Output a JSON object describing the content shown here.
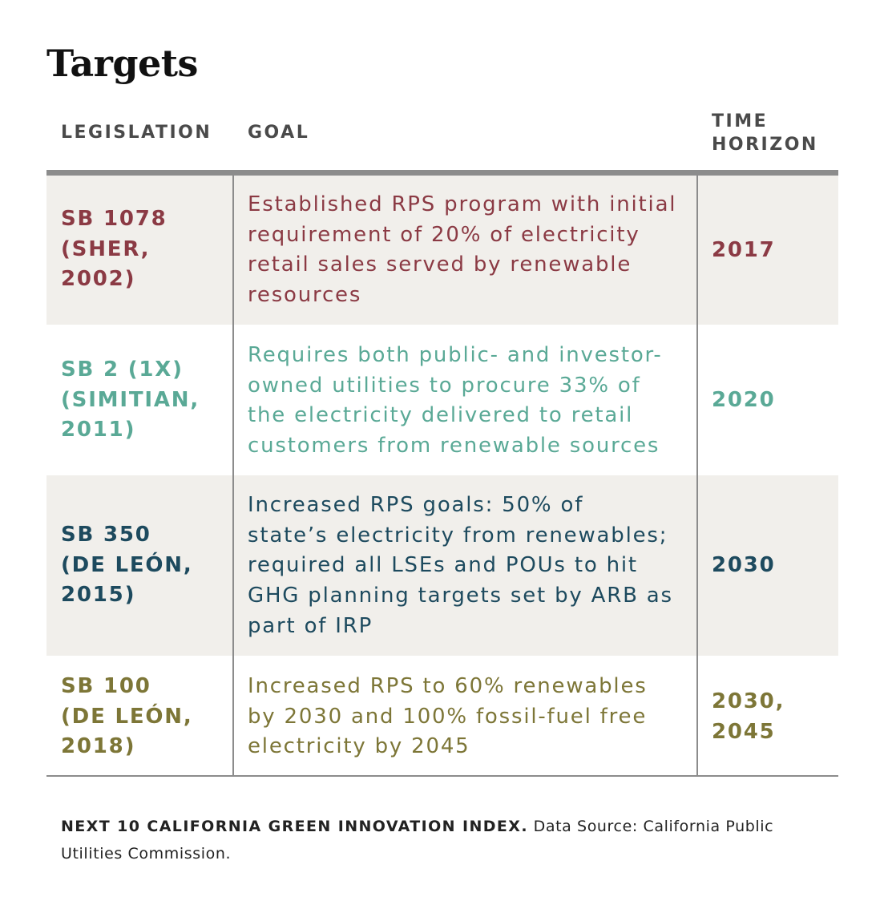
{
  "title": "Targets",
  "headers": {
    "legislation": "LEGISLATION",
    "goal": "GOAL",
    "time_horizon_line1": "TIME",
    "time_horizon_line2": "HORIZON"
  },
  "rows": [
    {
      "legislation": [
        "SB 1078",
        "(SHER,",
        "2002)"
      ],
      "goal": [
        "Established RPS program with initial",
        "requirement of 20% of electricity",
        "retail sales served by renewable",
        "resources"
      ],
      "time_horizon": [
        "2017"
      ],
      "color": "#8b3a44"
    },
    {
      "legislation": [
        "SB 2 (1X)",
        "(SIMITIAN,",
        "2011)"
      ],
      "goal": [
        "Requires both public- and investor-",
        "owned utilities to procure 33% of",
        "the electricity delivered to retail",
        "customers from renewable sources"
      ],
      "time_horizon": [
        "2020"
      ],
      "color": "#5aa996"
    },
    {
      "legislation": [
        "SB 350",
        "(DE LEÓN,",
        "2015)"
      ],
      "goal": [
        "Increased RPS goals: 50% of",
        "state’s electricity from renewables;",
        "required all LSEs and POUs to hit",
        "GHG planning targets set by ARB as",
        "part of IRP"
      ],
      "time_horizon": [
        "2030"
      ],
      "color": "#1d4a5e"
    },
    {
      "legislation": [
        "SB 100",
        "(DE LEÓN,",
        "2018)"
      ],
      "goal": [
        "Increased RPS to 60% renewables",
        "by 2030 and 100% fossil-fuel free",
        "electricity by 2045"
      ],
      "time_horizon": [
        "2030,",
        "2045"
      ],
      "color": "#7d7637"
    }
  ],
  "footer": {
    "source_bold": "NEXT 10 CALIFORNIA GREEN INNOVATION INDEX.",
    "source_text": " Data Source: California Public Utilities Commission."
  }
}
